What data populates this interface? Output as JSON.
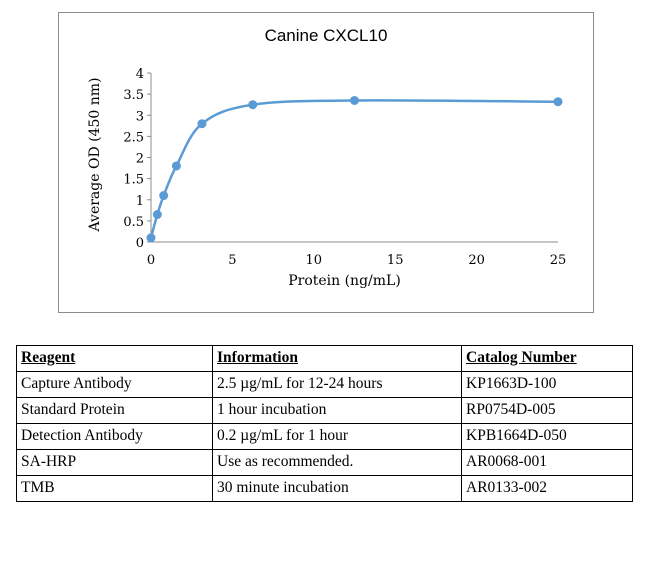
{
  "chart_data": {
    "type": "line",
    "title": "Canine CXCL10",
    "xlabel": "Protein (ng/mL)",
    "ylabel": "Average OD (450 nm)",
    "xlim": [
      0,
      25
    ],
    "ylim": [
      0,
      4
    ],
    "x_ticks": [
      0,
      5,
      10,
      15,
      20,
      25
    ],
    "y_ticks": [
      "0",
      "0.5",
      "1",
      "1.5",
      "2",
      "2.5",
      "3",
      "3.5",
      "4"
    ],
    "grid": false,
    "legend": "none",
    "series_color": "#5b9bd5",
    "x": [
      0,
      0.39,
      0.78,
      1.56,
      3.13,
      6.25,
      12.5,
      25
    ],
    "values": [
      0.1,
      0.65,
      1.1,
      1.8,
      2.8,
      3.25,
      3.35,
      3.32
    ]
  },
  "table": {
    "headers": [
      "Reagent",
      "Information",
      "Catalog Number"
    ],
    "rows": [
      [
        "Capture Antibody",
        "2.5 µg/mL for 12-24 hours",
        "KP1663D-100"
      ],
      [
        "Standard Protein",
        "1 hour incubation",
        "RP0754D-005"
      ],
      [
        "Detection Antibody",
        "0.2 µg/mL for 1 hour",
        "KPB1664D-050"
      ],
      [
        "SA-HRP",
        "Use as recommended.",
        "AR0068-001"
      ],
      [
        "TMB",
        "30 minute incubation",
        "AR0133-002"
      ]
    ]
  }
}
